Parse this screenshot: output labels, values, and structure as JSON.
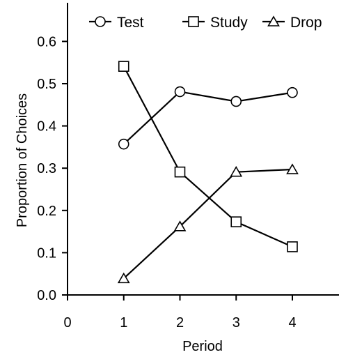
{
  "chart_data": {
    "type": "line",
    "xlabel": "Period",
    "ylabel": "Proportion of Choices",
    "x": [
      1,
      2,
      3,
      4
    ],
    "xlim": [
      0,
      4.7
    ],
    "ylim": [
      0,
      0.7
    ],
    "xticks": [
      0,
      1,
      2,
      3,
      4
    ],
    "yticks": [
      0.0,
      0.1,
      0.2,
      0.3,
      0.4,
      0.5,
      0.6
    ],
    "xtick_labels": [
      "0",
      "1",
      "2",
      "3",
      "4"
    ],
    "ytick_labels": [
      "0.0",
      "0.1",
      "0.2",
      "0.3",
      "0.4",
      "0.5",
      "0.6"
    ],
    "grid": false,
    "legend_position": "top",
    "series": [
      {
        "name": "Test",
        "marker": "circle",
        "values": [
          0.357,
          0.481,
          0.458,
          0.479
        ]
      },
      {
        "name": "Study",
        "marker": "square",
        "values": [
          0.541,
          0.291,
          0.173,
          0.114
        ]
      },
      {
        "name": "Drop",
        "marker": "triangle",
        "values": [
          0.039,
          0.162,
          0.291,
          0.297
        ]
      }
    ]
  }
}
